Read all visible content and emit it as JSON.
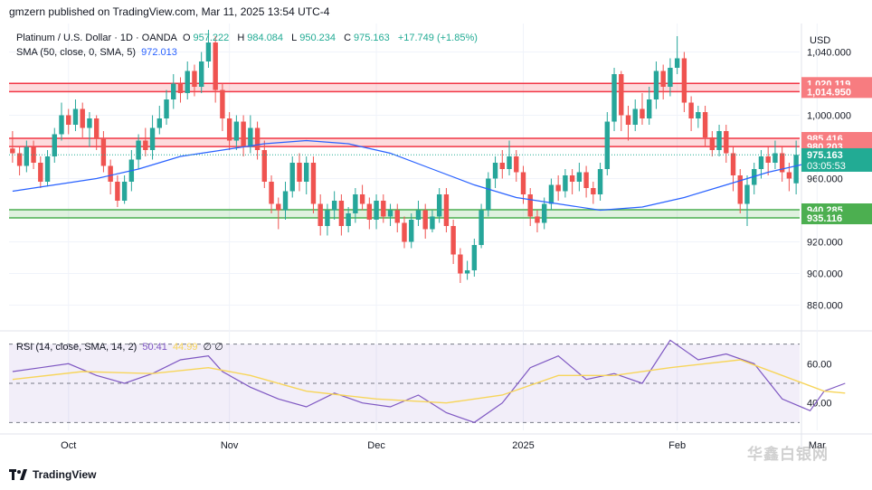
{
  "header": {
    "publisher": "gmzern published on TradingView.com, Mar 11, 2025 13:54 UTC-4"
  },
  "legend": {
    "symbol": "Platinum / U.S. Dollar · 1D · OANDA",
    "open_label": "O",
    "open": "957.222",
    "high_label": "H",
    "high": "984.084",
    "low_label": "L",
    "low": "950.234",
    "close_label": "C",
    "close": "975.163",
    "change": "+17.749 (+1.85%)",
    "sma_label": "SMA (50, close, 0, SMA, 5)",
    "sma_value": "972.013",
    "rsi_label": "RSI (14, close, SMA, 14, 2)",
    "rsi_value": "50.41",
    "rsi_sma_value": "44.99",
    "rsi_extra": "∅ ∅"
  },
  "footer": {
    "brand": "TradingView"
  },
  "watermark": "华鑫白银网",
  "chart_data": {
    "type": "candlestick",
    "currency": "USD",
    "price_axis_ticks": [
      880,
      900,
      920,
      940,
      960,
      980,
      1000,
      1020,
      1040
    ],
    "price_axis_tick_labels": [
      "880.000",
      "900.000",
      "920.000",
      "",
      "960.000",
      "",
      "1,000.000",
      "",
      "1,040.000"
    ],
    "price_range": [
      866,
      1058
    ],
    "time_labels": [
      {
        "label": "Oct",
        "index": 8
      },
      {
        "label": "Nov",
        "index": 31
      },
      {
        "label": "Dec",
        "index": 52
      },
      {
        "label": "2025",
        "index": 73
      },
      {
        "label": "Feb",
        "index": 95
      },
      {
        "label": "Mar",
        "index": 115
      }
    ],
    "zones": [
      {
        "name": "resistance-zone-upper",
        "top": 1020.119,
        "bottom": 1014.95,
        "color": "#f23645"
      },
      {
        "name": "resistance-zone-lower",
        "top": 985.416,
        "bottom": 980.203,
        "color": "#f23645"
      },
      {
        "name": "support-zone",
        "top": 940.285,
        "bottom": 935.116,
        "color": "#4caf50"
      }
    ],
    "price_tags": [
      {
        "value": 1020.119,
        "label": "1,020.119",
        "color": "#f77c80"
      },
      {
        "value": 1014.95,
        "label": "1,014.950",
        "color": "#f77c80"
      },
      {
        "value": 985.416,
        "label": "985.416",
        "color": "#f77c80"
      },
      {
        "value": 980.203,
        "label": "980.203",
        "color": "#f77c80"
      },
      {
        "value": 975.163,
        "label": "975.163",
        "sublabel": "03:05:53",
        "color": "#22ab94"
      },
      {
        "value": 940.285,
        "label": "940.285",
        "color": "#4caf50"
      },
      {
        "value": 935.116,
        "label": "935.116",
        "color": "#4caf50"
      }
    ],
    "candles": [
      [
        979,
        976,
        990,
        970
      ],
      [
        976,
        968,
        980,
        962
      ],
      [
        968,
        980,
        984,
        964
      ],
      [
        980,
        970,
        984,
        966
      ],
      [
        970,
        958,
        974,
        954
      ],
      [
        958,
        974,
        978,
        955
      ],
      [
        974,
        988,
        992,
        970
      ],
      [
        988,
        1000,
        1008,
        984
      ],
      [
        1000,
        994,
        1004,
        988
      ],
      [
        994,
        1004,
        1010,
        990
      ],
      [
        1004,
        992,
        1008,
        986
      ],
      [
        992,
        998,
        1002,
        980
      ],
      [
        998,
        985,
        1000,
        978
      ],
      [
        985,
        968,
        990,
        964
      ],
      [
        968,
        958,
        972,
        950
      ],
      [
        958,
        946,
        962,
        942
      ],
      [
        946,
        958,
        962,
        944
      ],
      [
        958,
        972,
        978,
        952
      ],
      [
        972,
        984,
        988,
        966
      ],
      [
        984,
        978,
        992,
        974
      ],
      [
        978,
        992,
        1000,
        972
      ],
      [
        992,
        998,
        1006,
        988
      ],
      [
        998,
        1010,
        1016,
        994
      ],
      [
        1010,
        1020,
        1026,
        1004
      ],
      [
        1020,
        1014,
        1024,
        1008
      ],
      [
        1014,
        1028,
        1034,
        1010
      ],
      [
        1028,
        1018,
        1032,
        1012
      ],
      [
        1018,
        1034,
        1040,
        1014
      ],
      [
        1034,
        1046,
        1054,
        1030
      ],
      [
        1046,
        1016,
        1050,
        1008
      ],
      [
        1016,
        998,
        1020,
        990
      ],
      [
        998,
        984,
        1002,
        978
      ],
      [
        984,
        996,
        1000,
        978
      ],
      [
        996,
        980,
        1000,
        974
      ],
      [
        980,
        992,
        1000,
        976
      ],
      [
        992,
        978,
        996,
        972
      ],
      [
        978,
        958,
        984,
        954
      ],
      [
        958,
        944,
        962,
        938
      ],
      [
        944,
        940,
        948,
        928
      ],
      [
        940,
        952,
        958,
        934
      ],
      [
        952,
        970,
        974,
        948
      ],
      [
        970,
        958,
        976,
        952
      ],
      [
        958,
        970,
        974,
        950
      ],
      [
        970,
        944,
        974,
        938
      ],
      [
        944,
        930,
        950,
        924
      ],
      [
        930,
        940,
        944,
        924
      ],
      [
        940,
        946,
        952,
        934
      ],
      [
        946,
        930,
        950,
        924
      ],
      [
        930,
        938,
        942,
        926
      ],
      [
        938,
        950,
        954,
        932
      ],
      [
        950,
        944,
        956,
        940
      ],
      [
        944,
        934,
        948,
        928
      ],
      [
        934,
        946,
        950,
        928
      ],
      [
        946,
        936,
        950,
        932
      ],
      [
        936,
        940,
        944,
        930
      ],
      [
        940,
        932,
        944,
        926
      ],
      [
        932,
        920,
        936,
        916
      ],
      [
        920,
        934,
        938,
        916
      ],
      [
        934,
        940,
        946,
        930
      ],
      [
        940,
        928,
        944,
        922
      ],
      [
        928,
        936,
        940,
        926
      ],
      [
        936,
        950,
        954,
        932
      ],
      [
        950,
        930,
        954,
        926
      ],
      [
        930,
        912,
        934,
        906
      ],
      [
        912,
        900,
        916,
        894
      ],
      [
        900,
        902,
        908,
        896
      ],
      [
        902,
        918,
        922,
        898
      ],
      [
        918,
        940,
        944,
        916
      ],
      [
        940,
        960,
        964,
        936
      ],
      [
        960,
        970,
        974,
        954
      ],
      [
        970,
        966,
        978,
        960
      ],
      [
        966,
        974,
        984,
        962
      ],
      [
        974,
        964,
        978,
        958
      ],
      [
        964,
        950,
        968,
        944
      ],
      [
        950,
        936,
        954,
        930
      ],
      [
        936,
        932,
        940,
        926
      ],
      [
        932,
        944,
        948,
        928
      ],
      [
        944,
        956,
        960,
        940
      ],
      [
        956,
        952,
        962,
        946
      ],
      [
        952,
        962,
        966,
        948
      ],
      [
        962,
        958,
        966,
        950
      ],
      [
        958,
        964,
        970,
        952
      ],
      [
        964,
        954,
        968,
        948
      ],
      [
        954,
        950,
        958,
        944
      ],
      [
        950,
        966,
        970,
        946
      ],
      [
        966,
        996,
        1002,
        962
      ],
      [
        996,
        1026,
        1030,
        990
      ],
      [
        1026,
        1000,
        1028,
        990
      ],
      [
        1000,
        994,
        1006,
        984
      ],
      [
        994,
        1004,
        1010,
        990
      ],
      [
        1004,
        998,
        1014,
        994
      ],
      [
        998,
        1010,
        1018,
        994
      ],
      [
        1010,
        1028,
        1034,
        1004
      ],
      [
        1028,
        1018,
        1032,
        1010
      ],
      [
        1018,
        1030,
        1036,
        1012
      ],
      [
        1030,
        1036,
        1050,
        1026
      ],
      [
        1036,
        1008,
        1040,
        1002
      ],
      [
        1008,
        998,
        1012,
        990
      ],
      [
        998,
        1002,
        1006,
        992
      ],
      [
        1002,
        986,
        1006,
        980
      ],
      [
        986,
        978,
        990,
        974
      ],
      [
        978,
        990,
        994,
        974
      ],
      [
        990,
        976,
        994,
        970
      ],
      [
        976,
        962,
        980,
        952
      ],
      [
        962,
        944,
        966,
        938
      ],
      [
        944,
        956,
        962,
        930
      ],
      [
        956,
        966,
        970,
        950
      ],
      [
        966,
        974,
        978,
        960
      ],
      [
        974,
        970,
        980,
        962
      ],
      [
        970,
        976,
        984,
        966
      ],
      [
        976,
        964,
        980,
        958
      ],
      [
        964,
        960,
        970,
        952
      ],
      [
        957,
        975,
        984,
        950
      ]
    ],
    "sma_points": [
      [
        0,
        952
      ],
      [
        6,
        956
      ],
      [
        12,
        960
      ],
      [
        18,
        966
      ],
      [
        24,
        974
      ],
      [
        30,
        978
      ],
      [
        36,
        982
      ],
      [
        42,
        984
      ],
      [
        48,
        982
      ],
      [
        54,
        976
      ],
      [
        60,
        966
      ],
      [
        66,
        956
      ],
      [
        72,
        948
      ],
      [
        78,
        944
      ],
      [
        84,
        940
      ],
      [
        90,
        942
      ],
      [
        96,
        948
      ],
      [
        102,
        956
      ],
      [
        108,
        964
      ],
      [
        114,
        970
      ],
      [
        119,
        972
      ]
    ],
    "rsi": {
      "ticks": [
        40,
        60
      ],
      "tick_labels": [
        "40.00",
        "60.00"
      ],
      "upper_band": 70,
      "middle_band": 50,
      "lower_band": 30,
      "range": [
        26,
        74
      ],
      "rsi_points": [
        [
          0,
          56
        ],
        [
          4,
          58
        ],
        [
          8,
          60
        ],
        [
          12,
          54
        ],
        [
          16,
          50
        ],
        [
          20,
          55
        ],
        [
          24,
          62
        ],
        [
          28,
          64
        ],
        [
          30,
          56
        ],
        [
          34,
          48
        ],
        [
          38,
          42
        ],
        [
          42,
          38
        ],
        [
          46,
          45
        ],
        [
          50,
          40
        ],
        [
          54,
          38
        ],
        [
          58,
          44
        ],
        [
          62,
          35
        ],
        [
          66,
          30
        ],
        [
          70,
          40
        ],
        [
          74,
          58
        ],
        [
          78,
          64
        ],
        [
          82,
          52
        ],
        [
          86,
          55
        ],
        [
          90,
          50
        ],
        [
          94,
          72
        ],
        [
          98,
          62
        ],
        [
          102,
          65
        ],
        [
          106,
          60
        ],
        [
          110,
          42
        ],
        [
          114,
          36
        ],
        [
          116,
          46
        ],
        [
          119,
          50
        ]
      ],
      "sma_points": [
        [
          0,
          52
        ],
        [
          10,
          56
        ],
        [
          20,
          55
        ],
        [
          28,
          58
        ],
        [
          34,
          54
        ],
        [
          42,
          46
        ],
        [
          52,
          42
        ],
        [
          62,
          40
        ],
        [
          70,
          44
        ],
        [
          78,
          54
        ],
        [
          86,
          54
        ],
        [
          94,
          58
        ],
        [
          104,
          62
        ],
        [
          110,
          54
        ],
        [
          116,
          46
        ],
        [
          119,
          45
        ]
      ]
    }
  }
}
